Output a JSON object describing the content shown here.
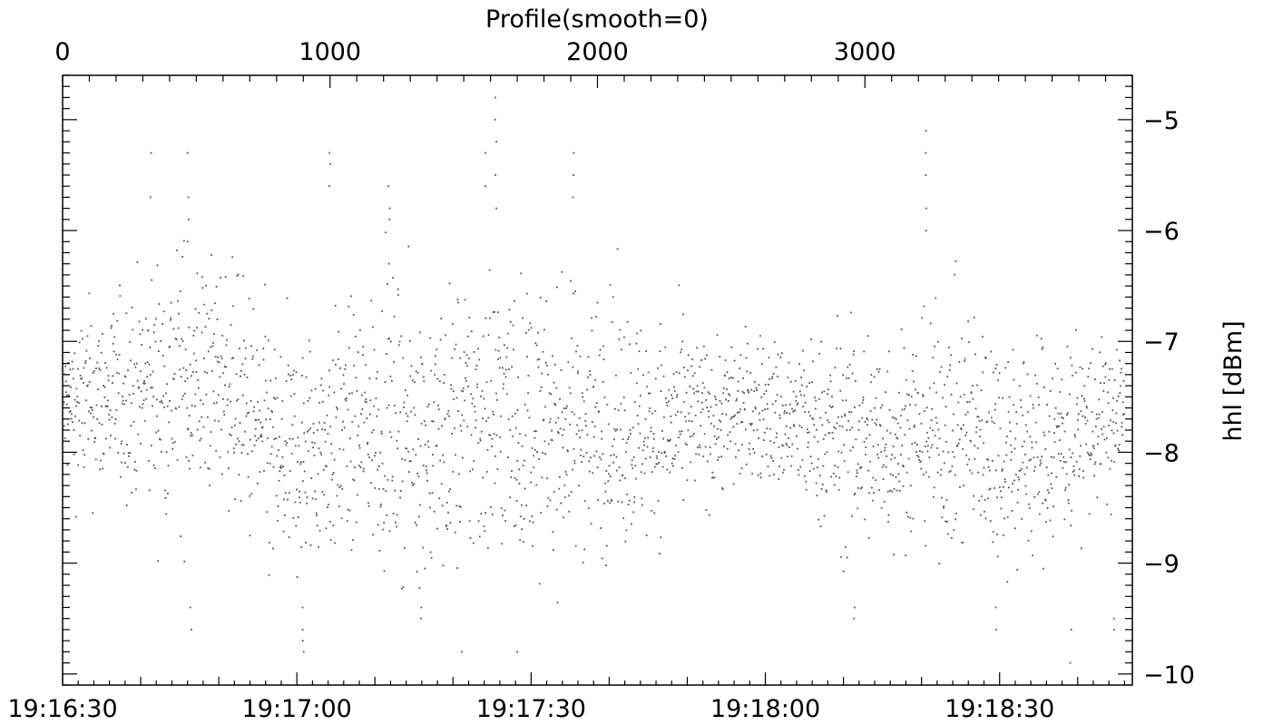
{
  "chart_data": {
    "type": "scatter",
    "title": "Profile(smooth=0)",
    "ylabel": "hhl [dBm]",
    "x_bottom": {
      "label": "",
      "unit": "time",
      "range": [
        "19:16:30",
        "19:18:47"
      ],
      "tick_labels": [
        "19:16:30",
        "19:17:00",
        "19:17:30",
        "19:18:00",
        "19:18:30"
      ],
      "tick_seconds": [
        0,
        30,
        60,
        90,
        120
      ]
    },
    "x_top": {
      "label": "Profile(smooth=0)",
      "range": [
        0,
        4000
      ],
      "tick_labels": [
        "0",
        "1000",
        "2000",
        "3000"
      ],
      "tick_values": [
        0,
        1000,
        2000,
        3000
      ]
    },
    "y": {
      "range": [
        -10.1,
        -4.6
      ],
      "tick_labels": [
        "-5",
        "-6",
        "-7",
        "-8",
        "-9",
        "-10"
      ],
      "tick_values": [
        -5,
        -6,
        -7,
        -8,
        -9,
        -10
      ]
    },
    "grid": false,
    "legend": "none",
    "point_color": "#555555",
    "series": [
      {
        "profile_start": 0,
        "profile_end": 3970,
        "envelope_profile": [
          0,
          200,
          400,
          600,
          800,
          1000,
          1200,
          1400,
          1600,
          1800,
          2000,
          2200,
          2400,
          2600,
          2800,
          3000,
          3200,
          3400,
          3600,
          3800,
          3970
        ],
        "envelope_mean_dbm": [
          -7.6,
          -7.5,
          -7.4,
          -7.3,
          -8.1,
          -7.9,
          -7.7,
          -7.9,
          -7.6,
          -7.8,
          -7.7,
          -7.8,
          -7.7,
          -7.6,
          -7.8,
          -7.9,
          -7.8,
          -7.8,
          -8.0,
          -7.8,
          -7.7
        ],
        "envelope_min_dbm": [
          -9.0,
          -8.8,
          -9.2,
          -9.6,
          -9.8,
          -9.5,
          -9.5,
          -9.8,
          -9.7,
          -9.6,
          -9.5,
          -9.4,
          -9.3,
          -9.0,
          -9.2,
          -9.5,
          -9.2,
          -9.6,
          -9.7,
          -9.6,
          -9.5
        ],
        "envelope_max_dbm": [
          -6.7,
          -5.4,
          -5.3,
          -5.8,
          -6.0,
          -5.3,
          -5.5,
          -5.5,
          -4.8,
          -5.4,
          -5.9,
          -6.3,
          -6.6,
          -6.6,
          -6.6,
          -6.1,
          -5.1,
          -6.2,
          -6.4,
          -6.5,
          -6.6
        ],
        "spikes": [
          {
            "x": 330,
            "values": [
              -5.3,
              -5.7
            ]
          },
          {
            "x": 470,
            "values": [
              -5.3,
              -5.7,
              -5.9,
              -6.1
            ]
          },
          {
            "x": 1000,
            "values": [
              -5.3,
              -5.4,
              -5.6
            ]
          },
          {
            "x": 1220,
            "values": [
              -5.6,
              -5.8,
              -5.9,
              -6.3
            ]
          },
          {
            "x": 1580,
            "values": [
              -5.3,
              -5.6
            ]
          },
          {
            "x": 1620,
            "values": [
              -4.8,
              -5.0,
              -5.2,
              -5.5,
              -5.8
            ]
          },
          {
            "x": 1910,
            "values": [
              -5.3,
              -5.5,
              -5.7
            ]
          },
          {
            "x": 3230,
            "values": [
              -5.1,
              -5.3,
              -5.5,
              -5.8,
              -6.0
            ]
          }
        ],
        "dips": [
          {
            "x": 480,
            "values": [
              -9.4,
              -9.6
            ]
          },
          {
            "x": 900,
            "values": [
              -9.4,
              -9.6,
              -9.7,
              -9.8
            ]
          },
          {
            "x": 1340,
            "values": [
              -9.4,
              -9.5
            ]
          },
          {
            "x": 1490,
            "values": [
              -9.8
            ]
          },
          {
            "x": 1700,
            "values": [
              -9.8
            ]
          },
          {
            "x": 2960,
            "values": [
              -9.4,
              -9.5
            ]
          },
          {
            "x": 3490,
            "values": [
              -9.4,
              -9.6
            ]
          },
          {
            "x": 3770,
            "values": [
              -9.6,
              -9.9
            ]
          },
          {
            "x": 3930,
            "values": [
              -9.5,
              -9.6
            ]
          }
        ]
      }
    ]
  }
}
